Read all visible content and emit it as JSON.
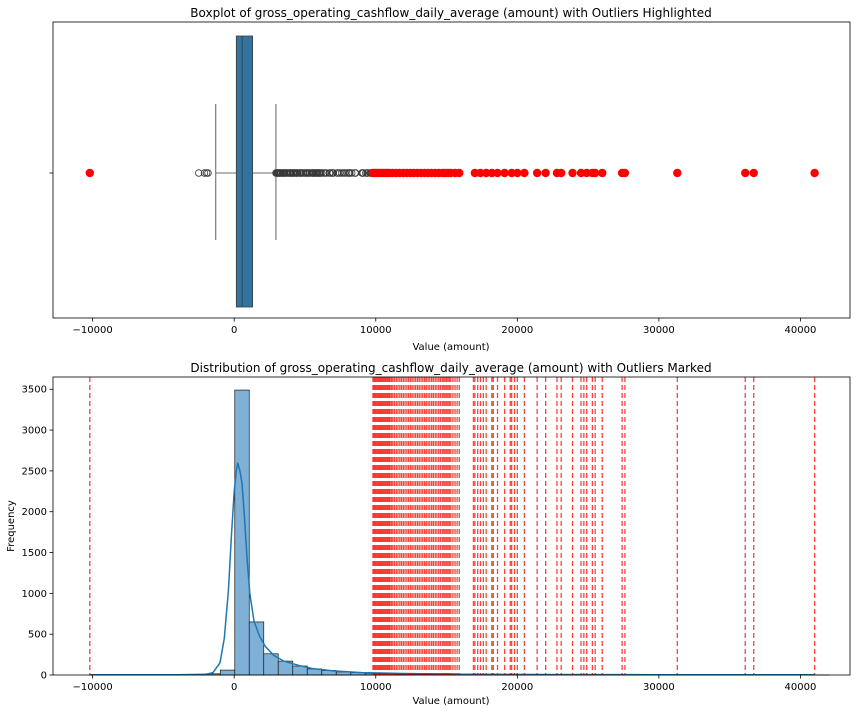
{
  "chart_data": [
    {
      "type": "boxplot",
      "title": "Boxplot of gross_operating_cashflow_daily_average (amount) with Outliers Highlighted",
      "xlabel": "Value (amount)",
      "ylabel": "",
      "xlim": [
        -12800,
        43500
      ],
      "xticks": [
        -10000,
        0,
        10000,
        20000,
        30000,
        40000
      ],
      "xtick_labels": [
        "−10000",
        "0",
        "10000",
        "20000",
        "30000",
        "40000"
      ],
      "box": {
        "q1": 150,
        "median": 560,
        "q3": 1300,
        "whisker_low": -1300,
        "whisker_high": 2950
      },
      "fliers_low": [
        -2500,
        -2100,
        -1950,
        -1850
      ],
      "fliers_high_range": [
        2950,
        9800
      ],
      "box_color": "#3274a1",
      "outlier_color": "#ff0000",
      "outliers_highlighted": [
        -10200,
        9800,
        9950,
        10100,
        10250,
        10400,
        10550,
        10700,
        10850,
        11000,
        11200,
        11450,
        11700,
        11950,
        12200,
        12450,
        12700,
        12950,
        13200,
        13450,
        13700,
        13950,
        14200,
        14450,
        14700,
        14900,
        15100,
        15300,
        15600,
        15900,
        17000,
        17400,
        17800,
        18200,
        18600,
        19100,
        19600,
        20000,
        20500,
        21400,
        22000,
        22800,
        23100,
        23900,
        24500,
        24900,
        25300,
        25500,
        26000,
        27400,
        27600,
        31300,
        36100,
        36700,
        41000
      ]
    },
    {
      "type": "histogram",
      "title": "Distribution of gross_operating_cashflow_daily_average (amount) with Outliers Marked",
      "xlabel": "Value (amount)",
      "ylabel": "Frequency",
      "xlim": [
        -12800,
        43500
      ],
      "ylim": [
        0,
        3650
      ],
      "xticks": [
        -10000,
        0,
        10000,
        20000,
        30000,
        40000
      ],
      "xtick_labels": [
        "−10000",
        "0",
        "10000",
        "20000",
        "30000",
        "40000"
      ],
      "yticks": [
        0,
        500,
        1000,
        1500,
        2000,
        2500,
        3000,
        3500
      ],
      "bin_start": -10200,
      "bin_width": 1024,
      "counts": [
        2,
        0,
        0,
        0,
        0,
        0,
        0,
        2,
        15,
        60,
        3490,
        650,
        260,
        170,
        110,
        75,
        55,
        38,
        28,
        20,
        16,
        12,
        10,
        8,
        7,
        6,
        5,
        4,
        4,
        3,
        3,
        3,
        3,
        2,
        2,
        2,
        2,
        1,
        1,
        1,
        1,
        1,
        1,
        1,
        1,
        0,
        0,
        0,
        0,
        0,
        1
      ],
      "bar_color": "#7fb0d6",
      "kde_color": "#1f77b4",
      "kde": [
        [
          -10200,
          2
        ],
        [
          -4000,
          3
        ],
        [
          -2000,
          8
        ],
        [
          -1500,
          30
        ],
        [
          -1000,
          150
        ],
        [
          -700,
          450
        ],
        [
          -400,
          1050
        ],
        [
          -200,
          1700
        ],
        [
          0,
          2250
        ],
        [
          150,
          2500
        ],
        [
          250,
          2600
        ],
        [
          400,
          2500
        ],
        [
          550,
          2350
        ],
        [
          700,
          2000
        ],
        [
          900,
          1450
        ],
        [
          1100,
          1000
        ],
        [
          1400,
          660
        ],
        [
          1800,
          470
        ],
        [
          2200,
          350
        ],
        [
          2800,
          240
        ],
        [
          3500,
          170
        ],
        [
          4500,
          120
        ],
        [
          5500,
          80
        ],
        [
          7000,
          50
        ],
        [
          9000,
          30
        ],
        [
          12000,
          18
        ],
        [
          16000,
          10
        ],
        [
          22000,
          6
        ],
        [
          30000,
          4
        ],
        [
          41000,
          2
        ]
      ],
      "outlier_line_color": "#ff0000",
      "outlier_lines": [
        -10200,
        9800,
        9870,
        9950,
        10020,
        10100,
        10180,
        10250,
        10330,
        10400,
        10480,
        10550,
        10630,
        10700,
        10780,
        10850,
        10930,
        11000,
        11100,
        11200,
        11320,
        11450,
        11570,
        11700,
        11820,
        11950,
        12070,
        12200,
        12320,
        12450,
        12570,
        12700,
        12820,
        12950,
        13070,
        13200,
        13320,
        13450,
        13570,
        13700,
        13820,
        13950,
        14070,
        14200,
        14320,
        14450,
        14570,
        14700,
        14800,
        14900,
        15000,
        15100,
        15200,
        15300,
        15450,
        15600,
        15750,
        15900,
        16900,
        17000,
        17200,
        17400,
        17600,
        17800,
        18200,
        18300,
        18600,
        19100,
        19500,
        19600,
        19800,
        20000,
        20500,
        21400,
        22000,
        22800,
        23100,
        23900,
        24500,
        24700,
        24900,
        25300,
        25500,
        26000,
        27400,
        27600,
        31300,
        36100,
        36700,
        41000
      ]
    }
  ]
}
